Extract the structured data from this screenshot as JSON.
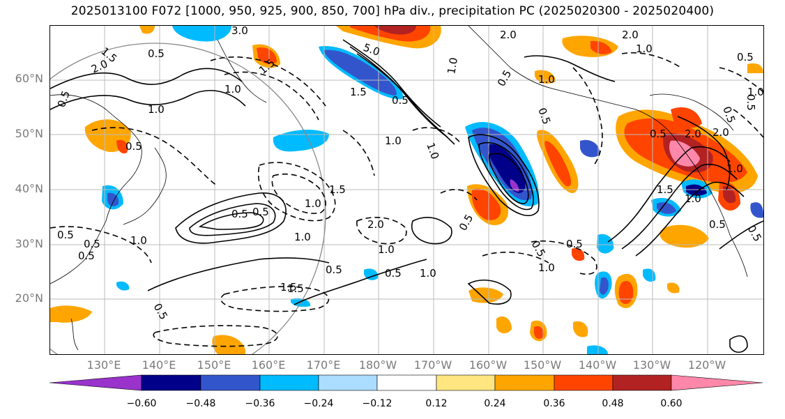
{
  "title": "2025013100 F072 [1000, 950, 925, 900, 850, 700] hPa div., precipitation PC (2025020300 - 2025020400)",
  "lat_labels": [
    "60°N",
    "50°N",
    "40°N",
    "30°N",
    "20°N"
  ],
  "lon_labels": [
    "130°E",
    "140°E",
    "150°E",
    "160°E",
    "170°E",
    "180°W",
    "170°W",
    "160°W",
    "150°W",
    "140°W",
    "130°W",
    "120°W"
  ],
  "colorbar": {
    "ticks": [
      "−0.60",
      "−0.48",
      "−0.36",
      "−0.24",
      "−0.12",
      "0.12",
      "0.24",
      "0.36",
      "0.48",
      "0.60"
    ],
    "colors": [
      "#9933cc",
      "#000088",
      "#3355cc",
      "#00bbff",
      "#aaddff",
      "#ffffff",
      "#ffe680",
      "#ffa500",
      "#ff4400",
      "#b22222",
      "#ff88aa"
    ]
  },
  "contour_labels": [
    "3.0",
    "1.5",
    "0.5",
    "2.0",
    "0.5",
    "1.0",
    "1.5",
    "1.0",
    "0.5",
    "0.5",
    "1.0",
    "0.5",
    "1.5",
    "0.5",
    "0.5",
    "0.5",
    "1.0",
    "1.5",
    "0.5",
    "1.0",
    "2.0",
    "1.0",
    "0.5",
    "1.5",
    "5.0",
    "1.5",
    "0.5",
    "1.0",
    "0.5",
    "1.0",
    "2.0",
    "1.0",
    "0.5",
    "1.0",
    "0.5",
    "0.5",
    "1.0",
    "1.0",
    "2.0",
    "0.5",
    "2.0",
    "1.0",
    "1.5",
    "1.0",
    "0.5",
    "2.0",
    "0.5",
    "0.5",
    "1.0",
    "0.5",
    "0.5",
    "0.5",
    "0.5",
    "1.0"
  ]
}
